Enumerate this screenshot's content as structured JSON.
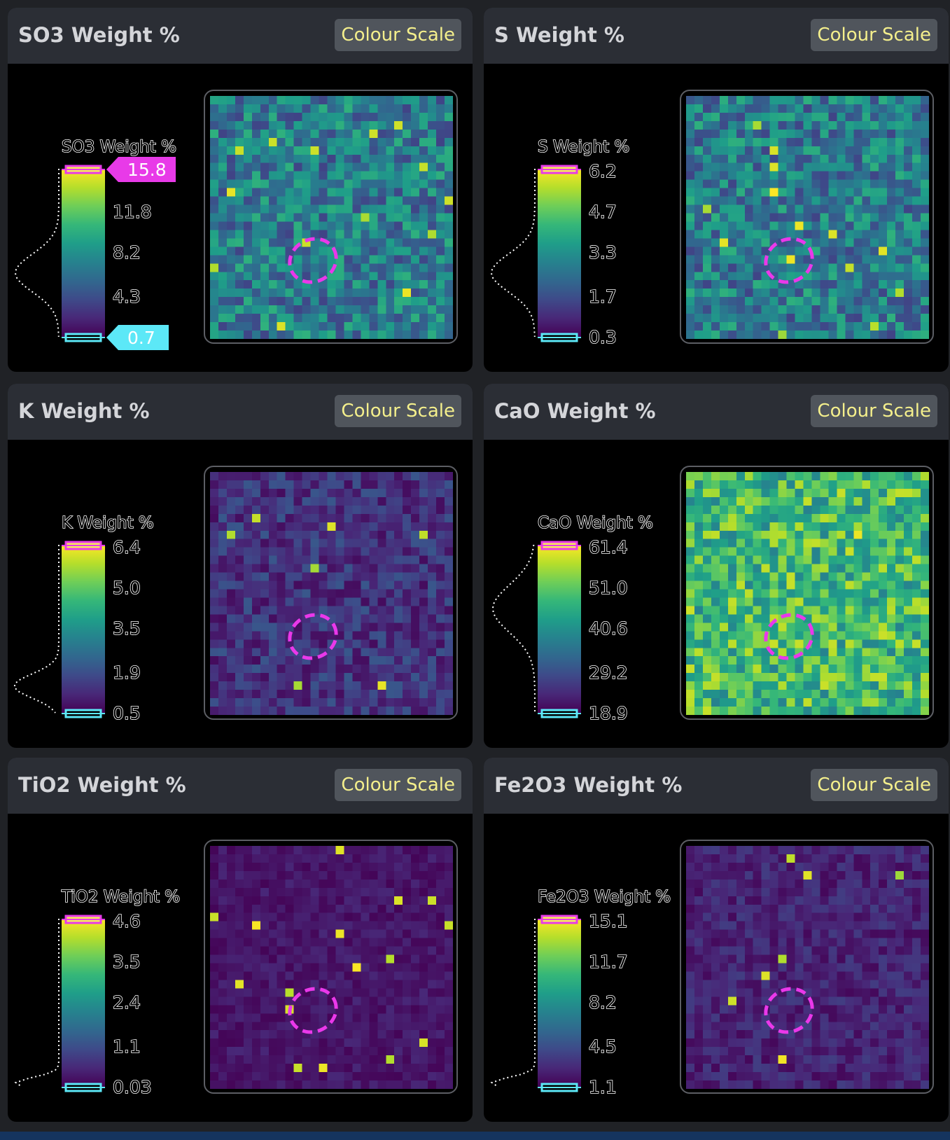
{
  "button_label": "Colour Scale",
  "colors": {
    "max_marker": "#e83ae8",
    "min_marker": "#5ce8f7",
    "roi_outline": "#ea38ea",
    "marker_text_max": "#ffffff",
    "marker_text_min": "#ffffff"
  },
  "panels": [
    {
      "title": "SO3 Weight %",
      "scale_title": "SO3 Weight %",
      "ticks": [
        "15.8",
        "11.8",
        "8.2",
        "4.3",
        "0.7"
      ],
      "show_max_marker_label": true,
      "show_min_marker_label": true,
      "max_value": "15.8",
      "min_value": "0.7",
      "histogram_shape": "peak-middle",
      "map_base_level": 0.42,
      "map_spread": 0.22
    },
    {
      "title": "S Weight %",
      "scale_title": "S Weight %",
      "ticks": [
        "6.2",
        "4.7",
        "3.3",
        "1.7",
        "0.3"
      ],
      "show_max_marker_label": false,
      "show_min_marker_label": false,
      "max_value": "6.2",
      "min_value": "0.3",
      "histogram_shape": "peak-middle",
      "map_base_level": 0.42,
      "map_spread": 0.22
    },
    {
      "title": "K Weight %",
      "scale_title": "K Weight %",
      "ticks": [
        "6.4",
        "5.0",
        "3.5",
        "1.9",
        "0.5"
      ],
      "show_max_marker_label": false,
      "show_min_marker_label": false,
      "max_value": "6.4",
      "min_value": "0.5",
      "histogram_shape": "peak-low",
      "map_base_level": 0.15,
      "map_spread": 0.12
    },
    {
      "title": "CaO Weight %",
      "scale_title": "CaO Weight %",
      "ticks": [
        "61.4",
        "51.0",
        "40.6",
        "29.2",
        "18.9"
      ],
      "show_max_marker_label": false,
      "show_min_marker_label": false,
      "max_value": "61.4",
      "min_value": "18.9",
      "histogram_shape": "peak-high",
      "map_base_level": 0.68,
      "map_spread": 0.24
    },
    {
      "title": "TiO2 Weight %",
      "scale_title": "TiO2 Weight %",
      "ticks": [
        "4.6",
        "3.5",
        "2.4",
        "1.1",
        "0.03"
      ],
      "show_max_marker_label": false,
      "show_min_marker_label": false,
      "max_value": "4.6",
      "min_value": "0.03",
      "histogram_shape": "peak-bottom",
      "map_base_level": 0.06,
      "map_spread": 0.05
    },
    {
      "title": "Fe2O3 Weight %",
      "scale_title": "Fe2O3 Weight %",
      "ticks": [
        "15.1",
        "11.7",
        "8.2",
        "4.5",
        "1.1"
      ],
      "show_max_marker_label": false,
      "show_min_marker_label": false,
      "max_value": "15.1",
      "min_value": "1.1",
      "histogram_shape": "peak-bottom",
      "map_base_level": 0.1,
      "map_spread": 0.08
    }
  ]
}
